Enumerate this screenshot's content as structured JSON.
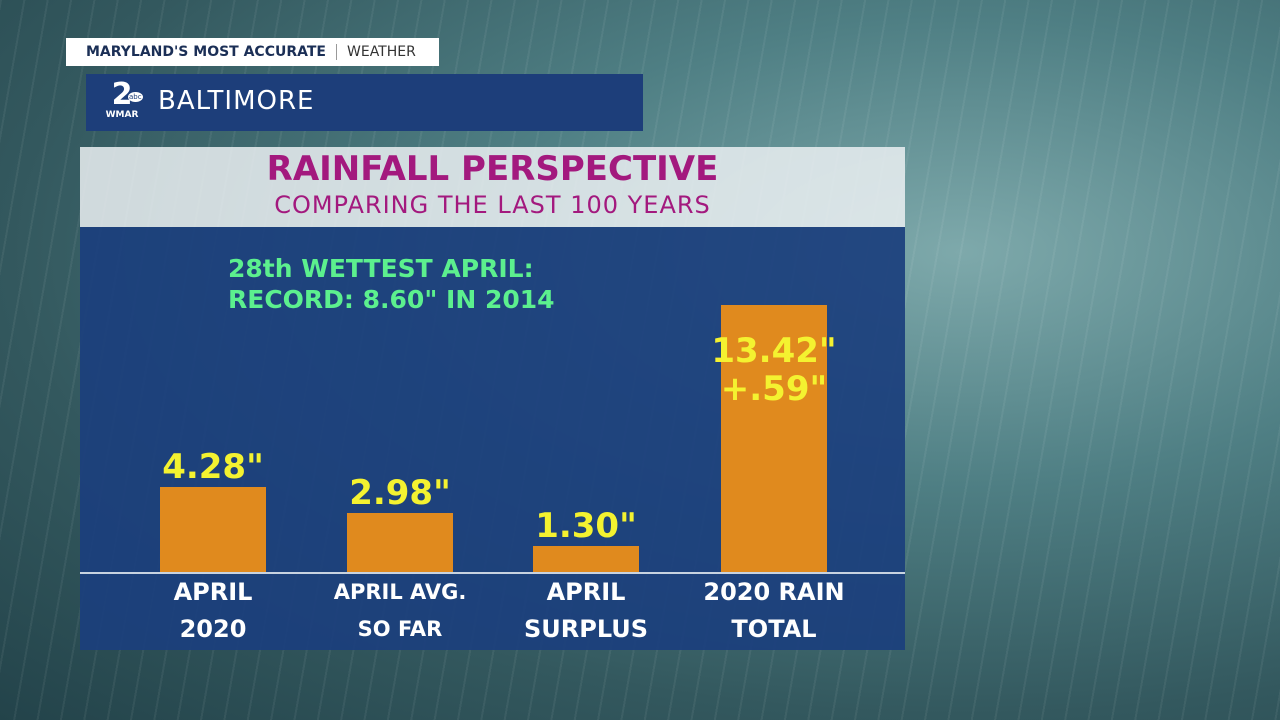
{
  "branding": {
    "tagline": "MARYLAND'S MOST ACCURATE",
    "section": "WEATHER",
    "logo_number": "2",
    "logo_network": "abc",
    "logo_station": "WMAR",
    "location": "BALTIMORE"
  },
  "chart_data": {
    "type": "bar",
    "title": "RAINFALL PERSPECTIVE",
    "subtitle": "COMPARING THE LAST 100 YEARS",
    "annotations": [
      "28th WETTEST APRIL:",
      "RECORD: 8.60\" IN 2014",
      "+.59\""
    ],
    "categories": [
      "APRIL\n2020",
      "APRIL AVG.\nSO FAR",
      "APRIL\nSURPLUS",
      "2020 RAIN\nTOTAL"
    ],
    "values": [
      4.28,
      2.98,
      1.3,
      13.42
    ],
    "value_labels": [
      "4.28\"",
      "2.98\"",
      "1.30\"",
      "13.42\""
    ],
    "color": "#e08a1e",
    "label_color": "#f4f230"
  }
}
